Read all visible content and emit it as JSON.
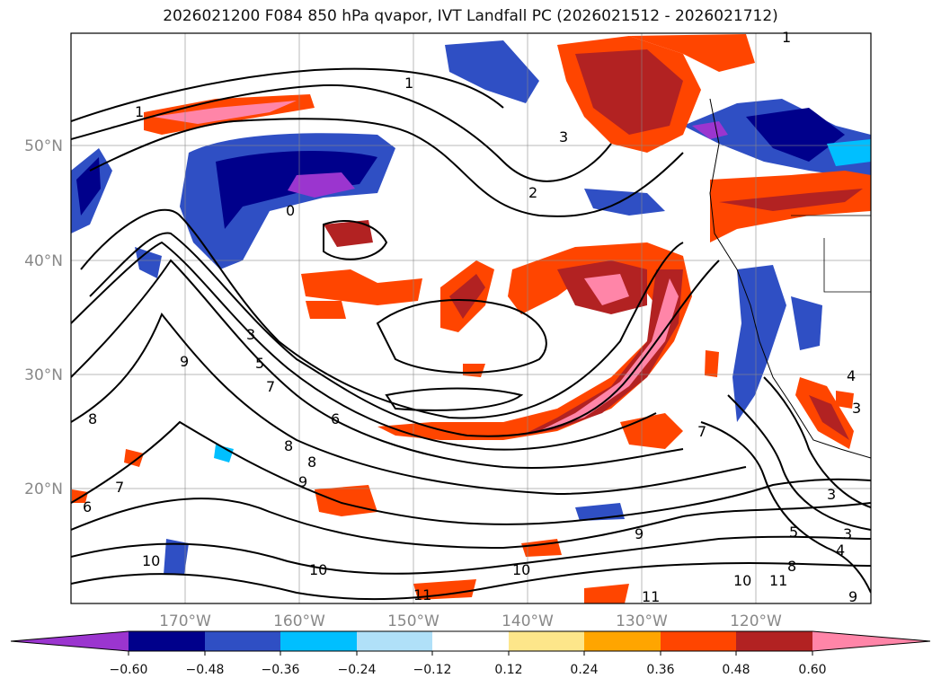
{
  "title": "2026021200 F084 850 hPa qvapor, IVT Landfall PC (2026021512 - 2026021712)",
  "map": {
    "lat_labels": [
      "50°N",
      "40°N",
      "30°N",
      "20°N"
    ],
    "lon_labels": [
      "170°W",
      "160°W",
      "150°W",
      "140°W",
      "130°W",
      "120°W"
    ],
    "contour_labels": [
      "1",
      "1",
      "3",
      "2",
      "0",
      "1",
      "9",
      "3",
      "5",
      "7",
      "6",
      "8",
      "8",
      "9",
      "8",
      "7",
      "6",
      "10",
      "10",
      "10",
      "11",
      "9",
      "7",
      "3",
      "5",
      "3",
      "4",
      "10",
      "11",
      "8",
      "11",
      "9",
      "4",
      "3"
    ]
  },
  "colorbar": {
    "labels": [
      "−0.60",
      "−0.48",
      "−0.36",
      "−0.24",
      "−0.12",
      "0.12",
      "0.24",
      "0.36",
      "0.48",
      "0.60"
    ],
    "colors": [
      "#9b35cf",
      "#00008b",
      "#2f4fc4",
      "#00bfff",
      "#b0e0f8",
      "#ffffff",
      "#fde68a",
      "#ffa500",
      "#ff4500",
      "#b22222",
      "#ff85a8"
    ]
  }
}
